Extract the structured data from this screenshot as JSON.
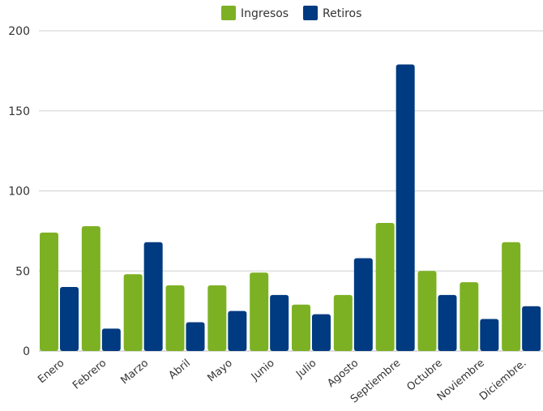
{
  "chart_data": {
    "type": "bar",
    "categories": [
      "Enero",
      "Febrero",
      "Marzo",
      "Abril",
      "Mayo",
      "Junio",
      "Julio",
      "Agosto",
      "Septiembre",
      "Octubre",
      "Noviembre",
      "Diciembre."
    ],
    "series": [
      {
        "name": "Ingresos",
        "color": "#7db124",
        "values": [
          74,
          78,
          48,
          41,
          41,
          49,
          29,
          35,
          80,
          50,
          43,
          68
        ]
      },
      {
        "name": "Retiros",
        "color": "#003a80",
        "values": [
          40,
          14,
          68,
          18,
          25,
          35,
          23,
          58,
          179,
          35,
          20,
          28
        ]
      }
    ],
    "yticks": [
      "0",
      "50",
      "100",
      "150",
      "200"
    ],
    "ylim": [
      0,
      200
    ],
    "grid": true,
    "legend_position": "top-center"
  }
}
